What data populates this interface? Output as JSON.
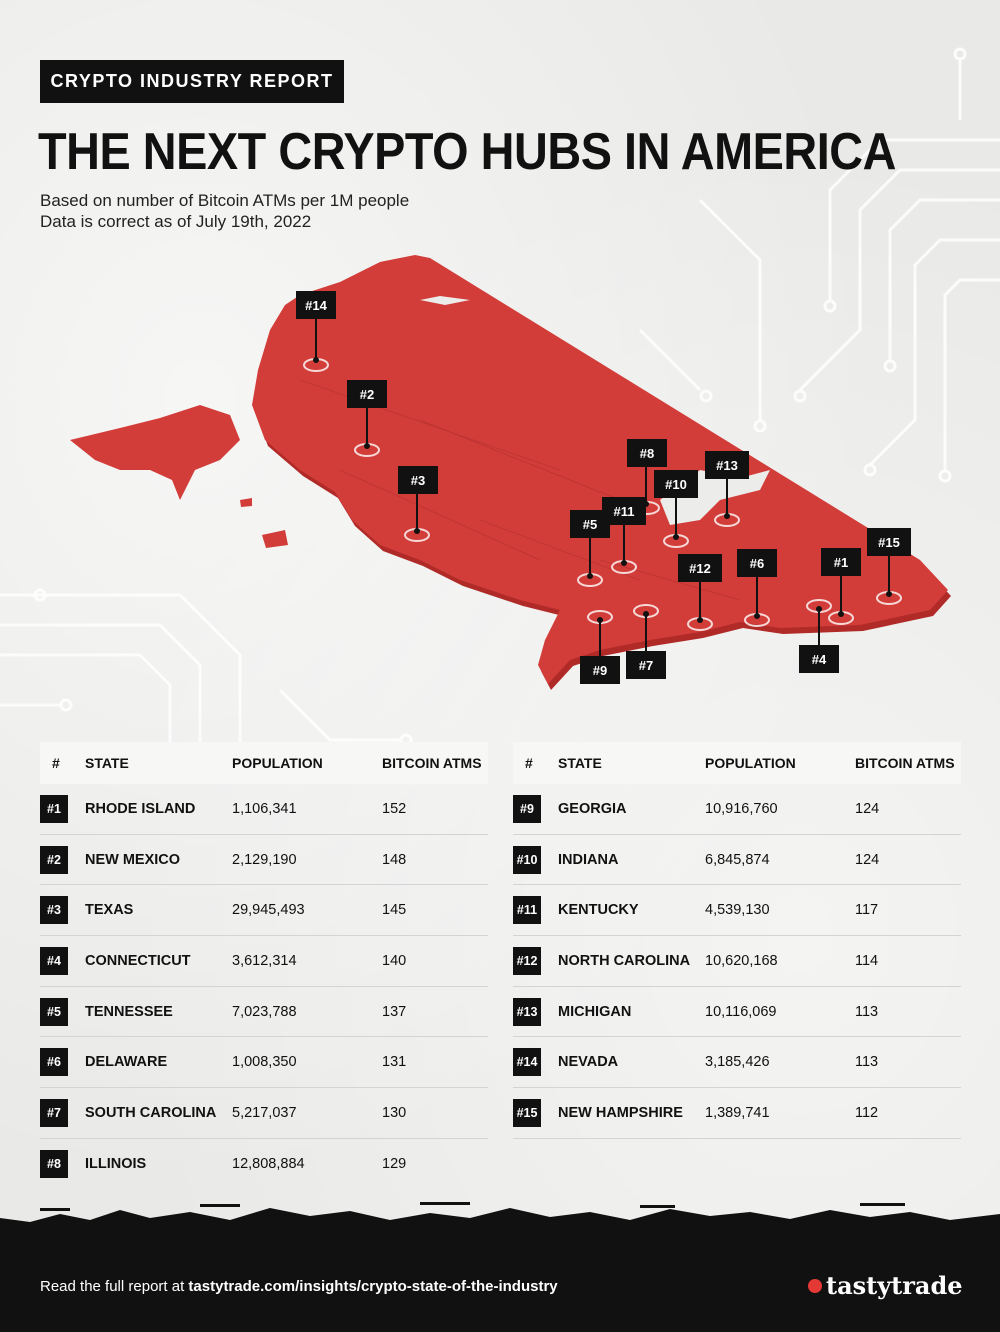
{
  "header": {
    "tag": "CRYPTO INDUSTRY REPORT",
    "title": "THE NEXT CRYPTO HUBS IN AMERICA",
    "subtitle_line1": "Based on number of Bitcoin ATMs per 1M people",
    "subtitle_line2": "Data is correct as of July 19th, 2022"
  },
  "colors": {
    "map": "#d23d3a",
    "marker": "#111111",
    "background": "#e9e9e7"
  },
  "map_markers": [
    "#1",
    "#2",
    "#3",
    "#4",
    "#5",
    "#6",
    "#7",
    "#8",
    "#9",
    "#10",
    "#11",
    "#12",
    "#13",
    "#14",
    "#15"
  ],
  "table": {
    "headers": {
      "rank": "#",
      "state": "STATE",
      "population": "POPULATION",
      "atms": "BITCOIN ATMS"
    },
    "left_rows": [
      {
        "rank": "#1",
        "state": "RHODE ISLAND",
        "population": "1,106,341",
        "atms": "152"
      },
      {
        "rank": "#2",
        "state": "NEW MEXICO",
        "population": "2,129,190",
        "atms": "148"
      },
      {
        "rank": "#3",
        "state": "TEXAS",
        "population": "29,945,493",
        "atms": "145"
      },
      {
        "rank": "#4",
        "state": "CONNECTICUT",
        "population": "3,612,314",
        "atms": "140"
      },
      {
        "rank": "#5",
        "state": "TENNESSEE",
        "population": "7,023,788",
        "atms": "137"
      },
      {
        "rank": "#6",
        "state": "DELAWARE",
        "population": "1,008,350",
        "atms": "131"
      },
      {
        "rank": "#7",
        "state": "SOUTH CAROLINA",
        "population": "5,217,037",
        "atms": "130"
      },
      {
        "rank": "#8",
        "state": "ILLINOIS",
        "population": "12,808,884",
        "atms": "129"
      }
    ],
    "right_rows": [
      {
        "rank": "#9",
        "state": "GEORGIA",
        "population": "10,916,760",
        "atms": "124"
      },
      {
        "rank": "#10",
        "state": "INDIANA",
        "population": "6,845,874",
        "atms": "124"
      },
      {
        "rank": "#11",
        "state": "KENTUCKY",
        "population": "4,539,130",
        "atms": "117"
      },
      {
        "rank": "#12",
        "state": "NORTH CAROLINA",
        "population": "10,620,168",
        "atms": "114"
      },
      {
        "rank": "#13",
        "state": "MICHIGAN",
        "population": "10,116,069",
        "atms": "113"
      },
      {
        "rank": "#14",
        "state": "NEVADA",
        "population": "3,185,426",
        "atms": "113"
      },
      {
        "rank": "#15",
        "state": "NEW HAMPSHIRE",
        "population": "1,389,741",
        "atms": "112"
      }
    ]
  },
  "footer": {
    "prefix": "Read the full report at ",
    "link": "tastytrade.com/insights/crypto-state-of-the-industry",
    "brand": "tastytrade"
  }
}
